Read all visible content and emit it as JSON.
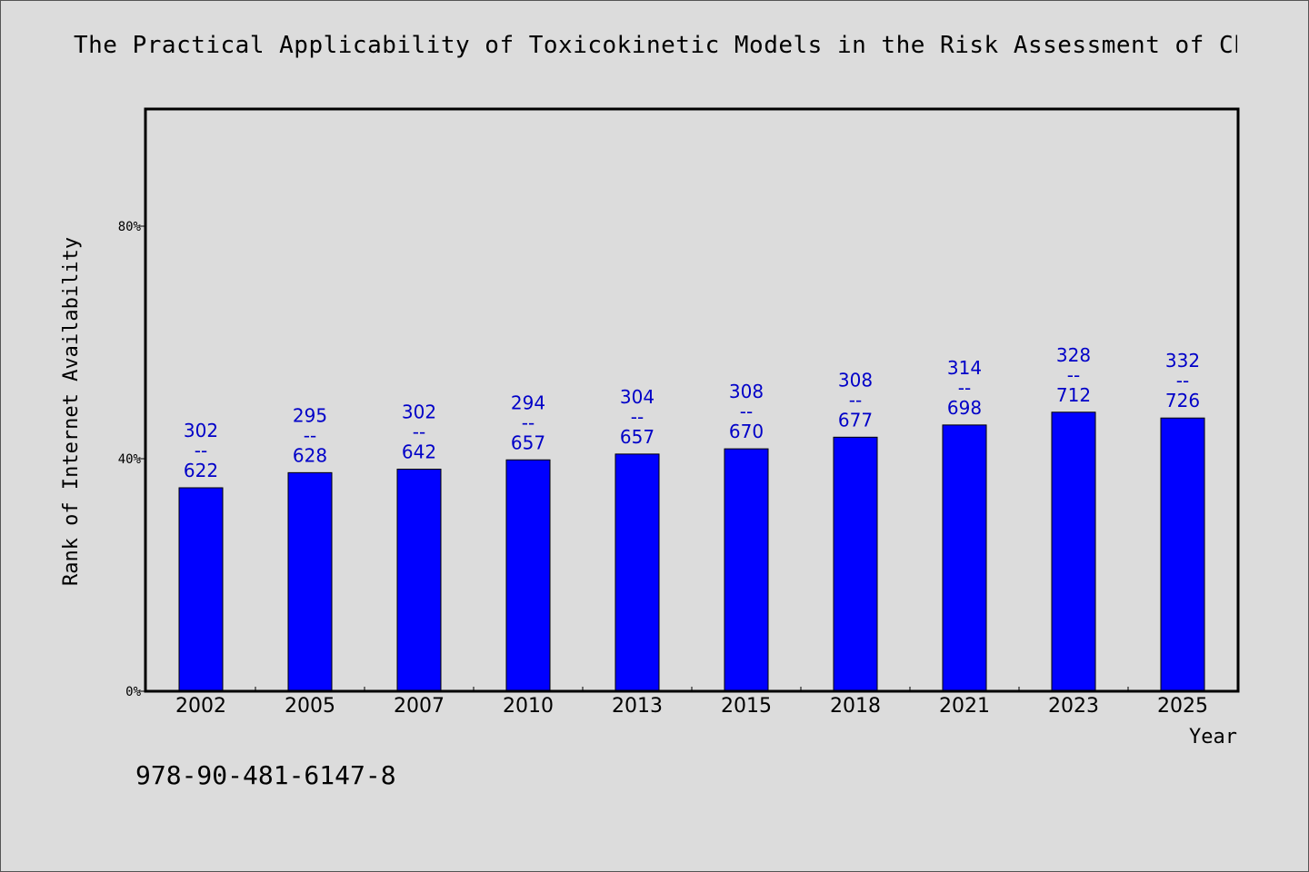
{
  "chart_data": {
    "type": "bar",
    "title": "The Practical Applicability of Toxicokinetic Models in the Risk Assessment of Ch",
    "xlabel": "Year",
    "ylabel": "Rank of Internet Availability",
    "categories": [
      "2002",
      "2005",
      "2007",
      "2010",
      "2013",
      "2015",
      "2018",
      "2021",
      "2023",
      "2025"
    ],
    "values": [
      35.0,
      37.6,
      38.2,
      39.8,
      40.8,
      41.7,
      43.7,
      45.8,
      48.0,
      47.0
    ],
    "labels": [
      [
        "302",
        "--",
        "622"
      ],
      [
        "295",
        "--",
        "628"
      ],
      [
        "302",
        "--",
        "642"
      ],
      [
        "294",
        "--",
        "657"
      ],
      [
        "304",
        "--",
        "657"
      ],
      [
        "308",
        "--",
        "670"
      ],
      [
        "308",
        "--",
        "677"
      ],
      [
        "314",
        "--",
        "698"
      ],
      [
        "328",
        "--",
        "712"
      ],
      [
        "332",
        "--",
        "726"
      ]
    ],
    "yticks": [
      0,
      40,
      80
    ],
    "ytick_labels": [
      "0%",
      "40%",
      "80%"
    ],
    "ylim": [
      0,
      100
    ],
    "bar_color": "#0000ff",
    "label_color": "#0000c8",
    "grid": false
  },
  "footer": {
    "isbn": "978-90-481-6147-8"
  }
}
